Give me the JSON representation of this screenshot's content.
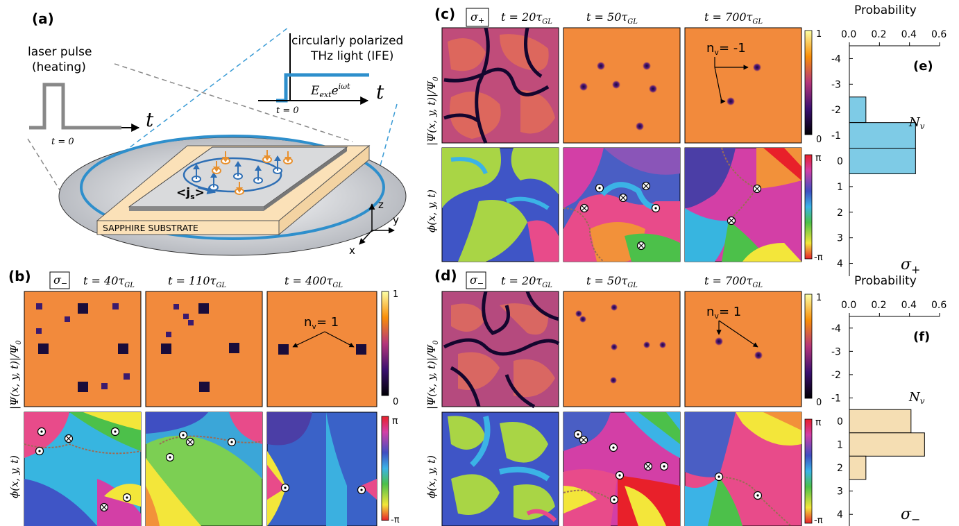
{
  "panels": {
    "a": {
      "label": "(a)",
      "laser_label_1": "laser pulse",
      "laser_label_2": "(heating)",
      "t_axis": "t",
      "t_zero": "t = 0",
      "thz_label_1": "circularly polarized",
      "thz_label_2": "THz light  (IFE)",
      "field_label": "E",
      "field_sub": "ext",
      "field_exp": "e",
      "field_sup": "iωt",
      "current_label": "<j",
      "current_sub": "s",
      "current_close": ">",
      "substrate_label": "SAPPHIRE SUBSTRATE",
      "axis_z": "z",
      "axis_y": "y",
      "axis_x": "x"
    },
    "b": {
      "label": "(b)",
      "sigma": "σ",
      "sigma_sub": "−",
      "times": [
        "t = 40τ",
        "t = 110τ",
        "t = 400τ"
      ],
      "time_sub": "GL",
      "nv_annotation": "n",
      "nv_value": "= 1"
    },
    "c": {
      "label": "(c)",
      "sigma": "σ",
      "sigma_sub": "+",
      "times": [
        "t = 20τ",
        "t = 50τ",
        "t = 700τ"
      ],
      "time_sub": "GL",
      "nv_annotation": "n",
      "nv_value": "= -1"
    },
    "d": {
      "label": "(d)",
      "sigma": "σ",
      "sigma_sub": "−",
      "times": [
        "t = 20τ",
        "t = 50τ",
        "t = 700τ"
      ],
      "time_sub": "GL",
      "nv_annotation": "n",
      "nv_value": "= 1"
    },
    "e": {
      "label": "(e)",
      "corner": "σ",
      "corner_sub": "+"
    },
    "f": {
      "label": "(f)",
      "corner": "σ",
      "corner_sub": "−"
    }
  },
  "row_labels": {
    "amplitude": "|Ψ(x, y, t)|/Ψ",
    "amplitude_sub": "0",
    "phase": "ϕ(x, y, t)"
  },
  "colorbars": {
    "amplitude_top": "1",
    "amplitude_bottom": "0",
    "phase_top": "π",
    "phase_bottom": "-π"
  },
  "vortex_symbols": {
    "vortex": "⊙",
    "antivortex": "⊗"
  },
  "colors": {
    "amplitude_background": "#f28a3c",
    "vortex_core": "#3b1a6e",
    "histogram_e": "#7ecbe6",
    "histogram_f": "#f5deb3",
    "thz_blue": "#2e8fcc",
    "laser_gray": "#888888",
    "substrate": "#fbe1b8"
  },
  "chart_data": [
    {
      "type": "bar",
      "title": "Probability",
      "ylabel": "N_v",
      "xlim": [
        0.0,
        0.6
      ],
      "xticks": [
        "0.0",
        "0.2",
        "0.4",
        "0.6"
      ],
      "categories": [
        "-4",
        "-3",
        "-2",
        "-1",
        "0",
        "1",
        "2",
        "3",
        "4"
      ],
      "values": [
        0,
        0,
        0.11,
        0.44,
        0.44,
        0,
        0,
        0,
        0
      ],
      "orientation": "horizontal",
      "panel": "(e)"
    },
    {
      "type": "bar",
      "title": "Probability",
      "ylabel": "N_v",
      "xlim": [
        0.0,
        0.6
      ],
      "xticks": [
        "0.0",
        "0.2",
        "0.4",
        "0.6"
      ],
      "categories": [
        "-4",
        "-3",
        "-2",
        "-1",
        "0",
        "1",
        "2",
        "3",
        "4"
      ],
      "values": [
        0,
        0,
        0,
        0,
        0.41,
        0.5,
        0.11,
        0,
        0
      ],
      "orientation": "horizontal",
      "panel": "(f)"
    }
  ]
}
